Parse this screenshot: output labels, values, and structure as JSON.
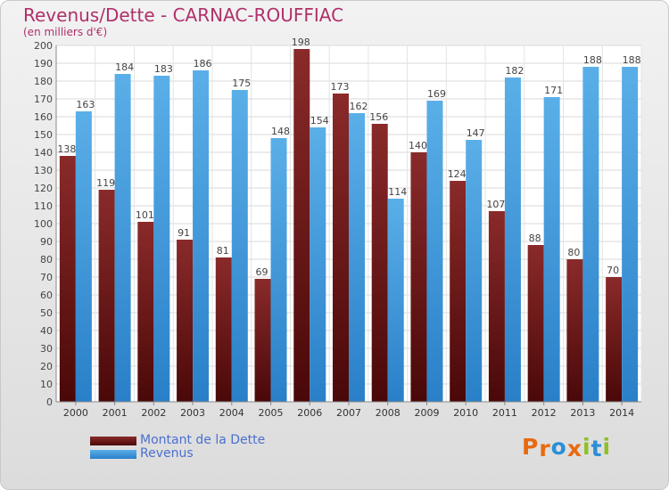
{
  "title": "Revenus/Dette - CARNAC-ROUFFIAC",
  "subtitle": "(en milliers d'€)",
  "legend": [
    {
      "label": "Montant de la Dette",
      "color": "#7a2020"
    },
    {
      "label": "Revenus",
      "color": "#3a98dc"
    }
  ],
  "logo": {
    "letters": [
      "P",
      "r",
      "o",
      "x",
      "i",
      "t",
      "i"
    ],
    "colors": [
      "#e86a10",
      "#e86a10",
      "#2a8fd8",
      "#e86a10",
      "#8fbf2a",
      "#2a8fd8",
      "#8fbf2a"
    ]
  },
  "chart_data": {
    "type": "bar",
    "categories": [
      "2000",
      "2001",
      "2002",
      "2003",
      "2004",
      "2005",
      "2006",
      "2007",
      "2008",
      "2009",
      "2010",
      "2011",
      "2012",
      "2013",
      "2014"
    ],
    "series": [
      {
        "name": "Montant de la Dette",
        "color": "#7a2020",
        "values": [
          138,
          119,
          101,
          91,
          81,
          69,
          198,
          173,
          156,
          140,
          124,
          107,
          88,
          80,
          70
        ]
      },
      {
        "name": "Revenus",
        "color": "#3a98dc",
        "values": [
          163,
          184,
          183,
          186,
          175,
          148,
          154,
          162,
          114,
          169,
          147,
          182,
          171,
          188,
          188
        ]
      }
    ],
    "ylim": [
      0,
      200
    ],
    "ytick_step": 10,
    "grid": true,
    "legend_position": "bottom-left"
  }
}
